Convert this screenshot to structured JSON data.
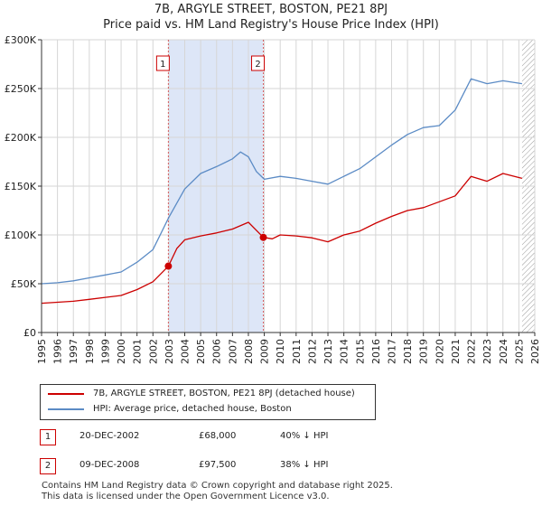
{
  "title_line1": "7B, ARGYLE STREET, BOSTON, PE21 8PJ",
  "title_line2": "Price paid vs. HM Land Registry's House Price Index (HPI)",
  "chart_data": {
    "type": "line",
    "title": "7B, ARGYLE STREET, BOSTON, PE21 8PJ — Price paid vs. HM Land Registry's House Price Index (HPI)",
    "xlim": [
      1995,
      2026
    ],
    "ylim": [
      0,
      300000
    ],
    "x_ticks": [
      1995,
      1996,
      1997,
      1998,
      1999,
      2000,
      2001,
      2002,
      2003,
      2004,
      2005,
      2006,
      2007,
      2008,
      2009,
      2010,
      2011,
      2012,
      2013,
      2014,
      2015,
      2016,
      2017,
      2018,
      2019,
      2020,
      2021,
      2022,
      2023,
      2024,
      2025,
      2026
    ],
    "y_ticks": [
      0,
      50000,
      100000,
      150000,
      200000,
      250000,
      300000
    ],
    "y_tick_labels": [
      "£0",
      "£50K",
      "£100K",
      "£150K",
      "£200K",
      "£250K",
      "£300K"
    ],
    "grid": true,
    "shaded_region": [
      2002.97,
      2008.94
    ],
    "hatched_after": 2025.2,
    "series": [
      {
        "name": "7B, ARGYLE STREET, BOSTON, PE21 8PJ (detached house)",
        "color": "#cc0000",
        "x": [
          1995,
          1996,
          1997,
          1998,
          1999,
          2000,
          2001,
          2002,
          2002.97,
          2003.5,
          2004,
          2005,
          2006,
          2007,
          2008,
          2008.94,
          2009.5,
          2010,
          2011,
          2012,
          2013,
          2014,
          2015,
          2016,
          2017,
          2018,
          2019,
          2020,
          2021,
          2022,
          2023,
          2024,
          2025.2
        ],
        "y": [
          30000,
          31000,
          32000,
          34000,
          36000,
          38000,
          44000,
          52000,
          68000,
          86000,
          95000,
          99000,
          102000,
          106000,
          113000,
          97500,
          96000,
          100000,
          99000,
          97000,
          93000,
          100000,
          104000,
          112000,
          119000,
          125000,
          128000,
          134000,
          140000,
          160000,
          155000,
          163000,
          158000
        ]
      },
      {
        "name": "HPI: Average price, detached house, Boston",
        "color": "#5b8bc5",
        "x": [
          1995,
          1996,
          1997,
          1998,
          1999,
          2000,
          2001,
          2002,
          2003,
          2004,
          2005,
          2006,
          2007,
          2007.5,
          2008,
          2008.5,
          2009,
          2010,
          2011,
          2012,
          2013,
          2014,
          2015,
          2016,
          2017,
          2018,
          2019,
          2020,
          2021,
          2022,
          2023,
          2024,
          2025.2
        ],
        "y": [
          50000,
          51000,
          53000,
          56000,
          59000,
          62000,
          72000,
          85000,
          118000,
          147000,
          163000,
          170000,
          178000,
          185000,
          180000,
          165000,
          157000,
          160000,
          158000,
          155000,
          152000,
          160000,
          168000,
          180000,
          192000,
          203000,
          210000,
          212000,
          228000,
          260000,
          255000,
          258000,
          255000
        ]
      }
    ],
    "annotations": [
      {
        "label": "1",
        "x": 2002.97,
        "y": 68000
      },
      {
        "label": "2",
        "x": 2008.94,
        "y": 97500
      }
    ]
  },
  "legend": {
    "property": "7B, ARGYLE STREET, BOSTON, PE21 8PJ (detached house)",
    "hpi": "HPI: Average price, detached house, Boston",
    "property_color": "#cc0000",
    "hpi_color": "#5b8bc5"
  },
  "transactions": [
    {
      "num": "1",
      "date": "20-DEC-2002",
      "price": "£68,000",
      "hpi": "40% ↓ HPI"
    },
    {
      "num": "2",
      "date": "09-DEC-2008",
      "price": "£97,500",
      "hpi": "38% ↓ HPI"
    }
  ],
  "footer": {
    "line1": "Contains HM Land Registry data © Crown copyright and database right 2025.",
    "line2": "This data is licensed under the Open Government Licence v3.0."
  }
}
